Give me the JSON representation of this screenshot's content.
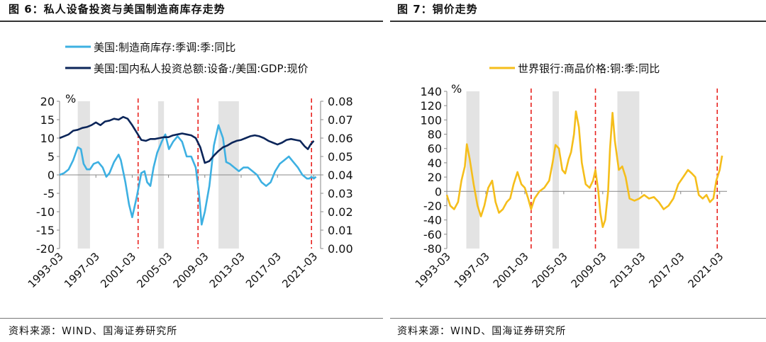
{
  "left": {
    "figure_title": "图 6：私人设备投资与美国制造商库存走势",
    "source": "资料来源：WIND、国海证券研究所",
    "chart_data": {
      "type": "line",
      "unit_label": "%",
      "legend": [
        {
          "name": "美国:制造商库存:季调:季:同比",
          "color": "#3DB0E2"
        },
        {
          "name": "美国:国内私人投资总额:设备:/美国:GDP:现价",
          "color": "#0B2559"
        }
      ],
      "y_left": {
        "range": [
          -20,
          20
        ],
        "ticks": [
          "20",
          "15",
          "10",
          "5",
          "0",
          "-5",
          "-10",
          "-15",
          "-20"
        ]
      },
      "y_right": {
        "range": [
          0,
          0.08
        ],
        "ticks": [
          "0.08",
          "0.07",
          "0.06",
          "0.05",
          "0.04",
          "0.03",
          "0.02",
          "0.01",
          "0.00"
        ]
      },
      "x_range": [
        1993.25,
        2022.0
      ],
      "x_ticks": [
        {
          "x": 1993.25,
          "label": "1993-03"
        },
        {
          "x": 1997.25,
          "label": "1997-03"
        },
        {
          "x": 2001.25,
          "label": "2001-03"
        },
        {
          "x": 2005.25,
          "label": "2005-03"
        },
        {
          "x": 2009.25,
          "label": "2009-03"
        },
        {
          "x": 2013.25,
          "label": "2013-03"
        },
        {
          "x": 2017.25,
          "label": "2017-03"
        },
        {
          "x": 2021.25,
          "label": "2021-03"
        }
      ],
      "shaded_periods": [
        [
          1995.25,
          1996.6
        ],
        [
          2004.1,
          2004.75
        ],
        [
          2010.75,
          2013.0
        ]
      ],
      "dashed_lines": [
        2001.9,
        2008.5,
        2021.0
      ],
      "series": [
        {
          "name": "美国:制造商库存:季调:季:同比",
          "axis": "left",
          "color": "#3DB0E2",
          "points": [
            [
              1993.25,
              0
            ],
            [
              1993.75,
              0.5
            ],
            [
              1994.25,
              1.5
            ],
            [
              1994.75,
              4
            ],
            [
              1995.25,
              7.5
            ],
            [
              1995.6,
              7
            ],
            [
              1995.9,
              3
            ],
            [
              1996.25,
              1.5
            ],
            [
              1996.6,
              1.5
            ],
            [
              1997.0,
              3
            ],
            [
              1997.5,
              3.5
            ],
            [
              1998.0,
              2
            ],
            [
              1998.4,
              -0.5
            ],
            [
              1998.75,
              0.5
            ],
            [
              1999.25,
              3.5
            ],
            [
              1999.75,
              5.5
            ],
            [
              2000.0,
              4
            ],
            [
              2000.5,
              -2
            ],
            [
              2000.9,
              -8
            ],
            [
              2001.25,
              -11.5
            ],
            [
              2001.75,
              -6
            ],
            [
              2002.25,
              0.5
            ],
            [
              2002.6,
              1
            ],
            [
              2002.9,
              -2
            ],
            [
              2003.25,
              -3
            ],
            [
              2003.6,
              2
            ],
            [
              2004.0,
              6
            ],
            [
              2004.5,
              9
            ],
            [
              2004.9,
              11
            ],
            [
              2005.3,
              7
            ],
            [
              2005.75,
              9
            ],
            [
              2006.25,
              10.5
            ],
            [
              2006.75,
              9
            ],
            [
              2007.25,
              5
            ],
            [
              2007.75,
              5
            ],
            [
              2008.25,
              2
            ],
            [
              2008.6,
              -5
            ],
            [
              2008.9,
              -13.5
            ],
            [
              2009.25,
              -10
            ],
            [
              2009.75,
              -3
            ],
            [
              2010.25,
              8
            ],
            [
              2010.75,
              13.5
            ],
            [
              2011.25,
              10
            ],
            [
              2011.6,
              3.5
            ],
            [
              2012.0,
              3
            ],
            [
              2012.5,
              2
            ],
            [
              2013.0,
              1
            ],
            [
              2013.5,
              2
            ],
            [
              2014.0,
              2
            ],
            [
              2014.5,
              1
            ],
            [
              2015.0,
              0
            ],
            [
              2015.5,
              -2
            ],
            [
              2016.0,
              -3
            ],
            [
              2016.5,
              -2
            ],
            [
              2017.0,
              1
            ],
            [
              2017.5,
              3
            ],
            [
              2018.0,
              4
            ],
            [
              2018.5,
              5
            ],
            [
              2019.0,
              3.5
            ],
            [
              2019.5,
              2
            ],
            [
              2020.0,
              0
            ],
            [
              2020.5,
              -1
            ],
            [
              2020.75,
              -1
            ],
            [
              2021.0,
              -0.5
            ],
            [
              2021.25,
              -1
            ],
            [
              2021.5,
              -0.5
            ]
          ]
        },
        {
          "name": "美国:国内私人投资总额:设备:/美国:GDP:现价",
          "axis": "right",
          "color": "#0B2559",
          "points": [
            [
              1993.25,
              0.06
            ],
            [
              1993.75,
              0.061
            ],
            [
              1994.25,
              0.062
            ],
            [
              1994.75,
              0.064
            ],
            [
              1995.25,
              0.0645
            ],
            [
              1995.75,
              0.0655
            ],
            [
              1996.25,
              0.066
            ],
            [
              1996.75,
              0.067
            ],
            [
              1997.25,
              0.0685
            ],
            [
              1997.75,
              0.067
            ],
            [
              1998.25,
              0.069
            ],
            [
              1998.75,
              0.0695
            ],
            [
              1999.25,
              0.0705
            ],
            [
              1999.75,
              0.07
            ],
            [
              2000.25,
              0.0715
            ],
            [
              2000.75,
              0.0705
            ],
            [
              2001.25,
              0.067
            ],
            [
              2001.75,
              0.063
            ],
            [
              2002.25,
              0.059
            ],
            [
              2002.75,
              0.0585
            ],
            [
              2003.25,
              0.0595
            ],
            [
              2003.75,
              0.0595
            ],
            [
              2004.25,
              0.06
            ],
            [
              2004.75,
              0.0605
            ],
            [
              2005.25,
              0.0605
            ],
            [
              2005.75,
              0.0615
            ],
            [
              2006.25,
              0.062
            ],
            [
              2006.75,
              0.0625
            ],
            [
              2007.25,
              0.062
            ],
            [
              2007.75,
              0.0615
            ],
            [
              2008.25,
              0.06
            ],
            [
              2008.75,
              0.055
            ],
            [
              2009.25,
              0.0465
            ],
            [
              2009.75,
              0.0475
            ],
            [
              2010.25,
              0.0505
            ],
            [
              2010.75,
              0.053
            ],
            [
              2011.25,
              0.055
            ],
            [
              2011.75,
              0.056
            ],
            [
              2012.25,
              0.0575
            ],
            [
              2012.75,
              0.0585
            ],
            [
              2013.25,
              0.059
            ],
            [
              2013.75,
              0.06
            ],
            [
              2014.25,
              0.061
            ],
            [
              2014.75,
              0.0615
            ],
            [
              2015.25,
              0.061
            ],
            [
              2015.75,
              0.06
            ],
            [
              2016.25,
              0.0585
            ],
            [
              2016.75,
              0.0575
            ],
            [
              2017.25,
              0.0565
            ],
            [
              2017.75,
              0.0575
            ],
            [
              2018.25,
              0.059
            ],
            [
              2018.75,
              0.0595
            ],
            [
              2019.25,
              0.059
            ],
            [
              2019.75,
              0.0585
            ],
            [
              2020.25,
              0.0555
            ],
            [
              2020.6,
              0.054
            ],
            [
              2020.9,
              0.0565
            ],
            [
              2021.25,
              0.0585
            ]
          ]
        }
      ]
    }
  },
  "right": {
    "figure_title": "图 7：铜价走势",
    "source": "资料来源：WIND、国海证券研究所",
    "chart_data": {
      "type": "line",
      "unit_label": "%",
      "legend": [
        {
          "name": "世界银行:商品价格:铜:季:同比",
          "color": "#F5BE1B"
        }
      ],
      "y_left": {
        "range": [
          -80,
          140
        ],
        "ticks": [
          "140",
          "120",
          "100",
          "80",
          "60",
          "40",
          "20",
          "0",
          "-20",
          "-40",
          "-60",
          "-80"
        ]
      },
      "x_range": [
        1993.25,
        2022.0
      ],
      "x_ticks": [
        {
          "x": 1993.25,
          "label": "1993-03"
        },
        {
          "x": 1997.25,
          "label": "1997-03"
        },
        {
          "x": 2001.25,
          "label": "2001-03"
        },
        {
          "x": 2005.25,
          "label": "2005-03"
        },
        {
          "x": 2009.25,
          "label": "2009-03"
        },
        {
          "x": 2013.25,
          "label": "2013-03"
        },
        {
          "x": 2017.25,
          "label": "2017-03"
        },
        {
          "x": 2021.25,
          "label": "2021-03"
        }
      ],
      "shaded_periods": [
        [
          1995.25,
          1996.6
        ],
        [
          2004.1,
          2004.75
        ],
        [
          2010.75,
          2013.0
        ]
      ],
      "dashed_lines": [
        2001.9,
        2008.5,
        2021.0
      ],
      "series": [
        {
          "name": "世界银行:商品价格:铜:季:同比",
          "axis": "left",
          "color": "#F5BE1B",
          "points": [
            [
              1993.25,
              -5
            ],
            [
              1993.6,
              -20
            ],
            [
              1994.0,
              -25
            ],
            [
              1994.4,
              -15
            ],
            [
              1994.75,
              15
            ],
            [
              1995.1,
              35
            ],
            [
              1995.3,
              66
            ],
            [
              1995.6,
              45
            ],
            [
              1996.0,
              10
            ],
            [
              1996.4,
              -20
            ],
            [
              1996.75,
              -35
            ],
            [
              1997.1,
              -20
            ],
            [
              1997.5,
              5
            ],
            [
              1997.9,
              15
            ],
            [
              1998.25,
              -15
            ],
            [
              1998.6,
              -30
            ],
            [
              1999.0,
              -25
            ],
            [
              1999.4,
              -15
            ],
            [
              1999.75,
              -10
            ],
            [
              2000.1,
              10
            ],
            [
              2000.5,
              27
            ],
            [
              2000.9,
              10
            ],
            [
              2001.25,
              5
            ],
            [
              2001.6,
              -10
            ],
            [
              2001.9,
              -25
            ],
            [
              2002.25,
              -10
            ],
            [
              2002.75,
              0
            ],
            [
              2003.25,
              5
            ],
            [
              2003.75,
              15
            ],
            [
              2004.1,
              40
            ],
            [
              2004.4,
              65
            ],
            [
              2004.75,
              60
            ],
            [
              2005.1,
              30
            ],
            [
              2005.4,
              25
            ],
            [
              2005.75,
              45
            ],
            [
              2006.0,
              55
            ],
            [
              2006.3,
              80
            ],
            [
              2006.5,
              112
            ],
            [
              2006.8,
              90
            ],
            [
              2007.1,
              40
            ],
            [
              2007.5,
              10
            ],
            [
              2007.9,
              5
            ],
            [
              2008.25,
              15
            ],
            [
              2008.5,
              30
            ],
            [
              2008.8,
              0
            ],
            [
              2009.0,
              -30
            ],
            [
              2009.25,
              -50
            ],
            [
              2009.5,
              -40
            ],
            [
              2009.8,
              0
            ],
            [
              2010.0,
              60
            ],
            [
              2010.25,
              110
            ],
            [
              2010.5,
              70
            ],
            [
              2010.9,
              30
            ],
            [
              2011.25,
              35
            ],
            [
              2011.6,
              20
            ],
            [
              2012.0,
              -10
            ],
            [
              2012.5,
              -13
            ],
            [
              2013.0,
              -10
            ],
            [
              2013.5,
              -5
            ],
            [
              2014.0,
              -10
            ],
            [
              2014.5,
              -8
            ],
            [
              2015.0,
              -15
            ],
            [
              2015.5,
              -25
            ],
            [
              2016.0,
              -20
            ],
            [
              2016.5,
              -10
            ],
            [
              2017.0,
              10
            ],
            [
              2017.5,
              20
            ],
            [
              2018.0,
              30
            ],
            [
              2018.4,
              25
            ],
            [
              2018.75,
              20
            ],
            [
              2019.1,
              -5
            ],
            [
              2019.5,
              -10
            ],
            [
              2019.9,
              -5
            ],
            [
              2020.25,
              -15
            ],
            [
              2020.6,
              -10
            ],
            [
              2020.9,
              15
            ],
            [
              2021.25,
              30
            ],
            [
              2021.5,
              50
            ]
          ]
        }
      ]
    }
  }
}
